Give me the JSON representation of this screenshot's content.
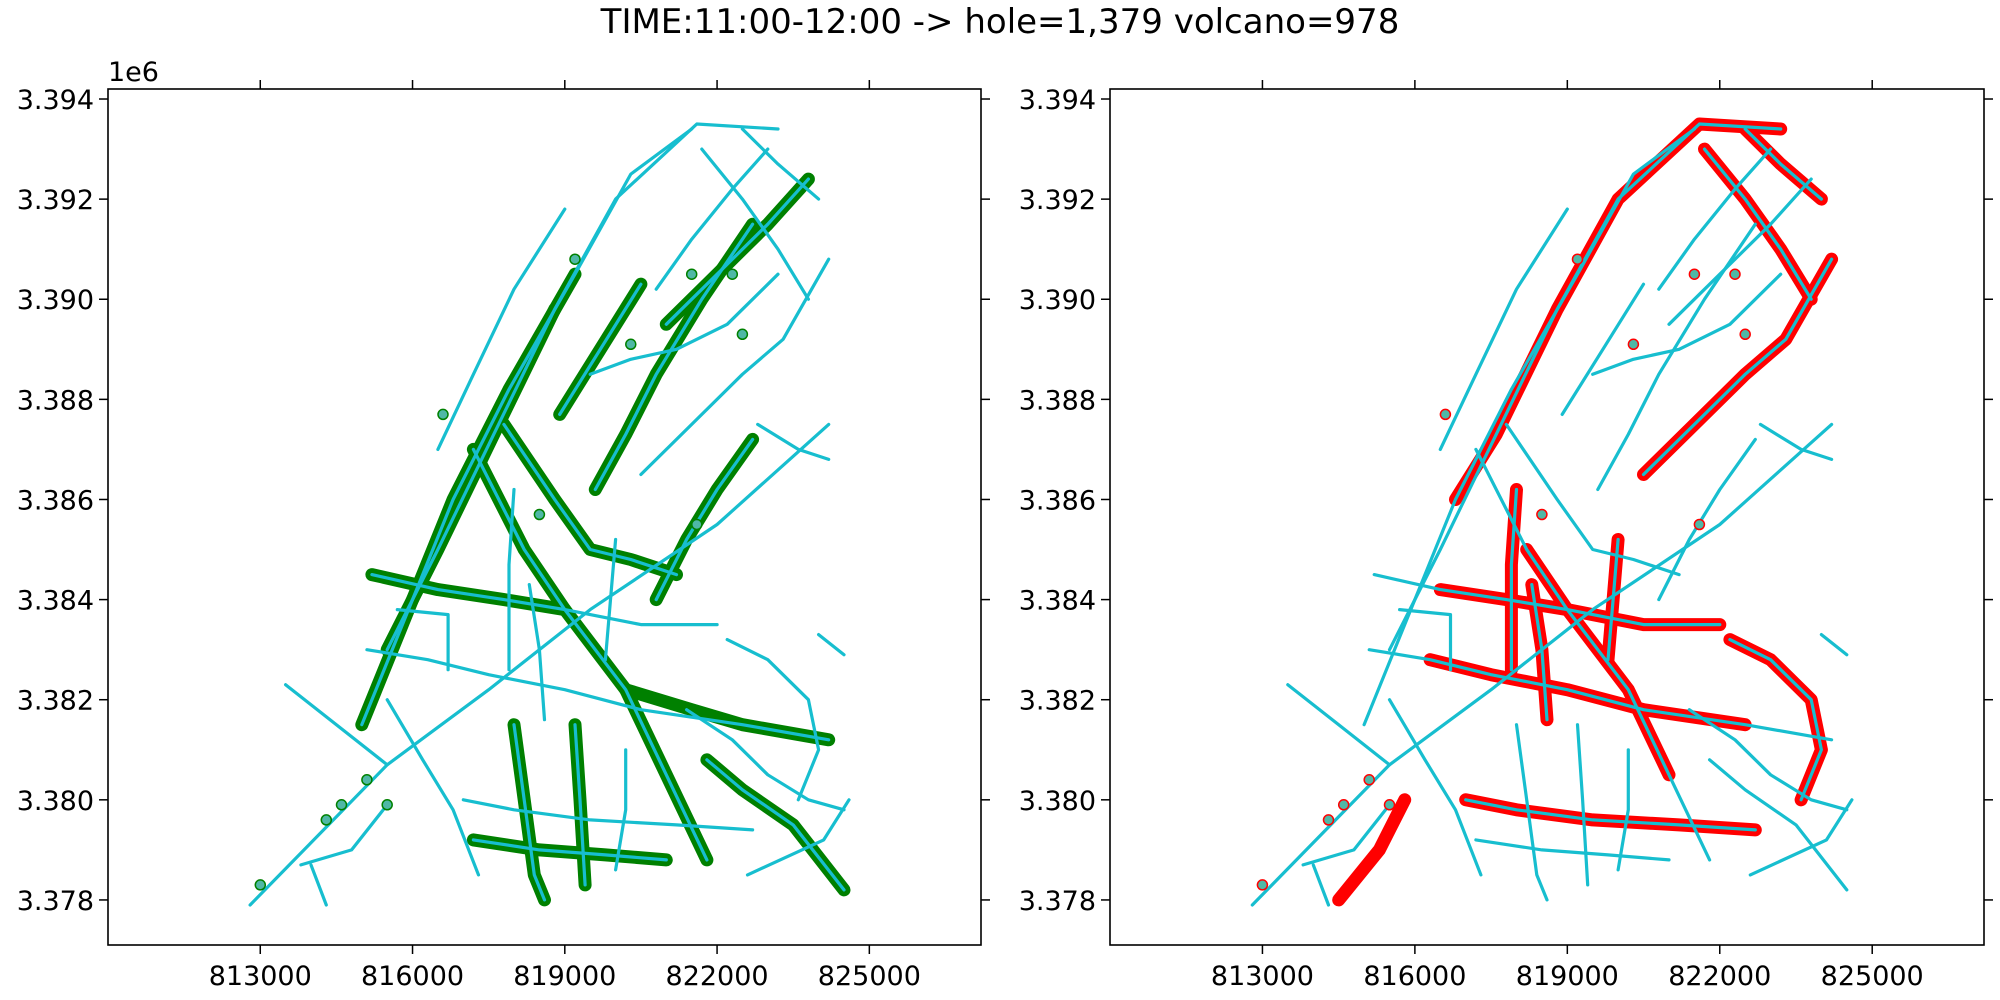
{
  "figure": {
    "title": "TIME:11:00-12:00 -> hole=1,379 volcano=978"
  },
  "axes": {
    "x_ticks": [
      "813000",
      "816000",
      "819000",
      "822000",
      "825000"
    ],
    "x_tick_values": [
      813000,
      816000,
      819000,
      822000,
      825000
    ],
    "y_ticks": [
      "3.378",
      "3.380",
      "3.382",
      "3.384",
      "3.386",
      "3.388",
      "3.390",
      "3.392",
      "3.394"
    ],
    "y_tick_values": [
      3.378,
      3.38,
      3.382,
      3.384,
      3.386,
      3.388,
      3.39,
      3.392,
      3.394
    ],
    "y_offset_label": "1e6",
    "x_range": [
      810000,
      827200
    ],
    "y_range": [
      3.3771,
      3.3942
    ]
  },
  "colors": {
    "network": "#17becf",
    "hole": "#008000",
    "volcano": "#ff0000",
    "point": "#4fb8a6"
  },
  "panels": [
    {
      "id": "hole",
      "highlight_color": "#008000"
    },
    {
      "id": "volcano",
      "highlight_color": "#ff0000"
    }
  ],
  "network": [
    [
      [
        812800,
        3.3779
      ],
      [
        815500,
        3.3807
      ],
      [
        817500,
        3.3822
      ],
      [
        819500,
        3.3838
      ],
      [
        822000,
        3.3855
      ],
      [
        824200,
        3.3875
      ]
    ],
    [
      [
        815000,
        3.3815
      ],
      [
        815800,
        3.3835
      ],
      [
        816800,
        3.386
      ],
      [
        817900,
        3.3882
      ],
      [
        819200,
        3.3905
      ],
      [
        820300,
        3.3925
      ],
      [
        821500,
        3.3934
      ]
    ],
    [
      [
        815500,
        3.383
      ],
      [
        816500,
        3.385
      ],
      [
        817600,
        3.3873
      ],
      [
        818800,
        3.3898
      ],
      [
        820000,
        3.392
      ],
      [
        821600,
        3.3935
      ],
      [
        823200,
        3.3934
      ]
    ],
    [
      [
        817200,
        3.387
      ],
      [
        818200,
        3.385
      ],
      [
        819000,
        3.3838
      ],
      [
        820200,
        3.3822
      ],
      [
        821000,
        3.3805
      ],
      [
        821800,
        3.3788
      ]
    ],
    [
      [
        815200,
        3.3845
      ],
      [
        816500,
        3.3842
      ],
      [
        817800,
        3.384
      ],
      [
        819000,
        3.3838
      ],
      [
        820500,
        3.3835
      ],
      [
        822000,
        3.3835
      ]
    ],
    [
      [
        815100,
        3.383
      ],
      [
        816300,
        3.3828
      ],
      [
        817500,
        3.3825
      ],
      [
        819000,
        3.3822
      ],
      [
        820500,
        3.3818
      ],
      [
        822500,
        3.3815
      ],
      [
        824200,
        3.3812
      ]
    ],
    [
      [
        815500,
        3.382
      ],
      [
        816200,
        3.3808
      ],
      [
        816800,
        3.3798
      ],
      [
        817300,
        3.3785
      ]
    ],
    [
      [
        817000,
        3.38
      ],
      [
        818000,
        3.3798
      ],
      [
        819500,
        3.3796
      ],
      [
        821200,
        3.3795
      ],
      [
        822700,
        3.3794
      ]
    ],
    [
      [
        817200,
        3.3792
      ],
      [
        818500,
        3.379
      ],
      [
        819800,
        3.3789
      ],
      [
        821000,
        3.3788
      ]
    ],
    [
      [
        818000,
        3.3815
      ],
      [
        818200,
        3.38
      ],
      [
        818400,
        3.3785
      ],
      [
        818600,
        3.378
      ]
    ],
    [
      [
        819200,
        3.3815
      ],
      [
        819300,
        3.38
      ],
      [
        819400,
        3.3783
      ]
    ],
    [
      [
        820200,
        3.381
      ],
      [
        820200,
        3.3798
      ],
      [
        820000,
        3.3786
      ]
    ],
    [
      [
        816500,
        3.387
      ],
      [
        817200,
        3.3885
      ],
      [
        818000,
        3.3902
      ],
      [
        819000,
        3.3918
      ]
    ],
    [
      [
        817800,
        3.3875
      ],
      [
        818800,
        3.386
      ],
      [
        819500,
        3.385
      ],
      [
        820300,
        3.3848
      ],
      [
        821200,
        3.3845
      ]
    ],
    [
      [
        819600,
        3.3862
      ],
      [
        820200,
        3.3873
      ],
      [
        820800,
        3.3885
      ],
      [
        821700,
        3.39
      ],
      [
        822700,
        3.3915
      ]
    ],
    [
      [
        820500,
        3.3865
      ],
      [
        821500,
        3.3875
      ],
      [
        822500,
        3.3885
      ],
      [
        823300,
        3.3892
      ],
      [
        824200,
        3.3908
      ]
    ],
    [
      [
        819500,
        3.3885
      ],
      [
        820300,
        3.3888
      ],
      [
        821200,
        3.389
      ],
      [
        822200,
        3.3895
      ],
      [
        823200,
        3.3905
      ]
    ],
    [
      [
        821000,
        3.3895
      ],
      [
        822000,
        3.3905
      ],
      [
        823000,
        3.3915
      ],
      [
        823800,
        3.3924
      ]
    ],
    [
      [
        821700,
        3.393
      ],
      [
        822500,
        3.392
      ],
      [
        823200,
        3.391
      ],
      [
        823800,
        3.39
      ]
    ],
    [
      [
        822500,
        3.3934
      ],
      [
        823200,
        3.3927
      ],
      [
        824000,
        3.392
      ]
    ],
    [
      [
        822800,
        3.3875
      ],
      [
        823600,
        3.387
      ],
      [
        824200,
        3.3868
      ]
    ],
    [
      [
        820800,
        3.384
      ],
      [
        821400,
        3.3852
      ],
      [
        822000,
        3.3862
      ],
      [
        822700,
        3.3872
      ]
    ],
    [
      [
        822200,
        3.3832
      ],
      [
        823000,
        3.3828
      ],
      [
        823800,
        3.382
      ],
      [
        824000,
        3.381
      ],
      [
        823600,
        3.38
      ]
    ],
    [
      [
        821400,
        3.3818
      ],
      [
        822300,
        3.3812
      ],
      [
        823000,
        3.3805
      ],
      [
        823800,
        3.38
      ],
      [
        824500,
        3.3798
      ]
    ],
    [
      [
        821800,
        3.3808
      ],
      [
        822500,
        3.3802
      ],
      [
        823500,
        3.3795
      ],
      [
        824500,
        3.3782
      ]
    ],
    [
      [
        824000,
        3.3833
      ],
      [
        824500,
        3.3829
      ]
    ],
    [
      [
        813500,
        3.3823
      ],
      [
        814500,
        3.3815
      ],
      [
        815500,
        3.3807
      ]
    ],
    [
      [
        813800,
        3.3787
      ],
      [
        814800,
        3.379
      ],
      [
        815500,
        3.3799
      ]
    ],
    [
      [
        814000,
        3.3787
      ],
      [
        814300,
        3.3779
      ]
    ],
    [
      [
        818900,
        3.3877
      ],
      [
        819700,
        3.389
      ],
      [
        820500,
        3.3903
      ]
    ],
    [
      [
        820800,
        3.3902
      ],
      [
        821500,
        3.3912
      ],
      [
        822300,
        3.3922
      ],
      [
        823000,
        3.393
      ]
    ],
    [
      [
        817900,
        3.3826
      ],
      [
        817900,
        3.3847
      ],
      [
        818000,
        3.3862
      ]
    ],
    [
      [
        819800,
        3.3828
      ],
      [
        819900,
        3.384
      ],
      [
        820000,
        3.3852
      ]
    ],
    [
      [
        815700,
        3.3838
      ],
      [
        816700,
        3.3837
      ],
      [
        816700,
        3.3826
      ]
    ],
    [
      [
        818300,
        3.3843
      ],
      [
        818500,
        3.383
      ],
      [
        818600,
        3.3816
      ]
    ],
    [
      [
        822600,
        3.3785
      ],
      [
        824100,
        3.3792
      ],
      [
        824600,
        3.38
      ]
    ]
  ],
  "highlight_hole": [
    [
      [
        815200,
        3.3845
      ],
      [
        816500,
        3.3842
      ],
      [
        817800,
        3.384
      ],
      [
        819000,
        3.3838
      ]
    ],
    [
      [
        815000,
        3.3815
      ],
      [
        815800,
        3.3835
      ],
      [
        816800,
        3.386
      ],
      [
        817900,
        3.3882
      ],
      [
        819200,
        3.3905
      ]
    ],
    [
      [
        815500,
        3.383
      ],
      [
        816500,
        3.385
      ],
      [
        817600,
        3.3873
      ],
      [
        818800,
        3.3898
      ]
    ],
    [
      [
        817800,
        3.3875
      ],
      [
        818800,
        3.386
      ],
      [
        819500,
        3.385
      ],
      [
        820300,
        3.3848
      ],
      [
        821200,
        3.3845
      ]
    ],
    [
      [
        817200,
        3.387
      ],
      [
        818200,
        3.385
      ],
      [
        819000,
        3.3838
      ],
      [
        820200,
        3.3822
      ],
      [
        821000,
        3.3805
      ],
      [
        821800,
        3.3788
      ]
    ],
    [
      [
        820200,
        3.3822
      ],
      [
        821500,
        3.3818
      ],
      [
        822500,
        3.3815
      ],
      [
        824200,
        3.3812
      ]
    ],
    [
      [
        817200,
        3.3792
      ],
      [
        818500,
        3.379
      ],
      [
        819800,
        3.3789
      ],
      [
        821000,
        3.3788
      ]
    ],
    [
      [
        818000,
        3.3815
      ],
      [
        818200,
        3.38
      ],
      [
        818400,
        3.3785
      ],
      [
        818600,
        3.378
      ]
    ],
    [
      [
        819200,
        3.3815
      ],
      [
        819300,
        3.38
      ],
      [
        819400,
        3.3783
      ]
    ],
    [
      [
        820800,
        3.384
      ],
      [
        821400,
        3.3852
      ],
      [
        822000,
        3.3862
      ],
      [
        822700,
        3.3872
      ]
    ],
    [
      [
        821800,
        3.3808
      ],
      [
        822500,
        3.3802
      ],
      [
        823500,
        3.3795
      ],
      [
        824500,
        3.3782
      ]
    ],
    [
      [
        819600,
        3.3862
      ],
      [
        820200,
        3.3873
      ],
      [
        820800,
        3.3885
      ],
      [
        821700,
        3.39
      ],
      [
        822700,
        3.3915
      ]
    ],
    [
      [
        821000,
        3.3895
      ],
      [
        822000,
        3.3905
      ],
      [
        823000,
        3.3915
      ],
      [
        823800,
        3.3924
      ]
    ],
    [
      [
        818900,
        3.3877
      ],
      [
        819700,
        3.389
      ],
      [
        820500,
        3.3903
      ]
    ]
  ],
  "highlight_volcano": [
    [
      [
        816800,
        3.386
      ],
      [
        817600,
        3.3873
      ],
      [
        818800,
        3.3898
      ],
      [
        820000,
        3.392
      ],
      [
        821600,
        3.3935
      ],
      [
        823200,
        3.3934
      ]
    ],
    [
      [
        816500,
        3.3842
      ],
      [
        817800,
        3.384
      ],
      [
        819000,
        3.3838
      ],
      [
        820500,
        3.3835
      ],
      [
        822000,
        3.3835
      ]
    ],
    [
      [
        816300,
        3.3828
      ],
      [
        817500,
        3.3825
      ],
      [
        819000,
        3.3822
      ],
      [
        820500,
        3.3818
      ],
      [
        822500,
        3.3815
      ]
    ],
    [
      [
        817000,
        3.38
      ],
      [
        818000,
        3.3798
      ],
      [
        819500,
        3.3796
      ],
      [
        821200,
        3.3795
      ],
      [
        822700,
        3.3794
      ]
    ],
    [
      [
        818200,
        3.385
      ],
      [
        819000,
        3.3838
      ],
      [
        820200,
        3.3822
      ],
      [
        821000,
        3.3805
      ]
    ],
    [
      [
        820500,
        3.3865
      ],
      [
        821500,
        3.3875
      ],
      [
        822500,
        3.3885
      ],
      [
        823300,
        3.3892
      ],
      [
        824200,
        3.3908
      ]
    ],
    [
      [
        821700,
        3.393
      ],
      [
        822500,
        3.392
      ],
      [
        823200,
        3.391
      ],
      [
        823800,
        3.39
      ]
    ],
    [
      [
        822500,
        3.3934
      ],
      [
        823200,
        3.3927
      ],
      [
        824000,
        3.392
      ]
    ],
    [
      [
        822200,
        3.3832
      ],
      [
        823000,
        3.3828
      ],
      [
        823800,
        3.382
      ],
      [
        824000,
        3.381
      ],
      [
        823600,
        3.38
      ]
    ],
    [
      [
        814500,
        3.378
      ],
      [
        815300,
        3.379
      ],
      [
        815800,
        3.38
      ]
    ],
    [
      [
        817900,
        3.3826
      ],
      [
        817900,
        3.3847
      ],
      [
        818000,
        3.3862
      ]
    ],
    [
      [
        819800,
        3.3828
      ],
      [
        819900,
        3.384
      ],
      [
        820000,
        3.3852
      ]
    ],
    [
      [
        818300,
        3.3843
      ],
      [
        818500,
        3.383
      ],
      [
        818600,
        3.3816
      ]
    ]
  ],
  "points": [
    [
      813000,
      3.3783
    ],
    [
      814300,
      3.3796
    ],
    [
      814600,
      3.3799
    ],
    [
      815100,
      3.3804
    ],
    [
      815500,
      3.3799
    ],
    [
      819200,
      3.3908
    ],
    [
      820300,
      3.3891
    ],
    [
      821500,
      3.3905
    ],
    [
      822300,
      3.3905
    ],
    [
      822500,
      3.3893
    ],
    [
      818500,
      3.3857
    ],
    [
      821600,
      3.3855
    ],
    [
      816600,
      3.3877
    ]
  ]
}
